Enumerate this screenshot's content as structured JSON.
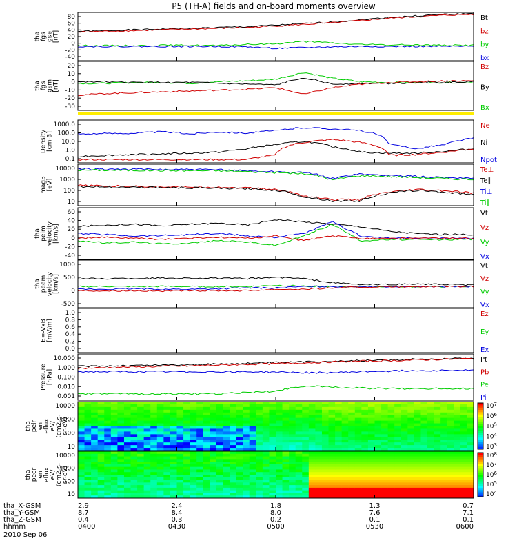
{
  "chart_data": {
    "type": "line",
    "title": "P5 (TH-A) fields and on-board moments overview",
    "x_tick_labels": [
      "0400",
      "0430",
      "0500",
      "0530",
      "0600"
    ],
    "ephemeris": [
      {
        "name": "tha_X-GSM",
        "values": [
          "2.9",
          "2.4",
          "1.8",
          "1.3",
          "0.7"
        ]
      },
      {
        "name": "tha_Y-GSM",
        "values": [
          "8.7",
          "8.4",
          "8.0",
          "7.6",
          "7.1"
        ]
      },
      {
        "name": "tha_Z-GSM",
        "values": [
          "0.4",
          "0.3",
          "0.2",
          "0.1",
          "0.1"
        ]
      },
      {
        "name": "hhmm",
        "values": [
          "0400",
          "0430",
          "0500",
          "0530",
          "0600"
        ]
      }
    ],
    "date_label": "2010 Sep 06",
    "panels": [
      {
        "id": "fgs_gse",
        "ylabel": [
          "tha",
          "fgs",
          "gse",
          "[nT]"
        ],
        "yticks": [
          "80",
          "60",
          "40",
          "20",
          "0",
          "-20",
          "-40"
        ],
        "ylim": [
          -40,
          85
        ],
        "legend": [
          {
            "label": "Bt",
            "color": "#000000"
          },
          {
            "label": "bz",
            "color": "#d00000"
          },
          {
            "label": "by",
            "color": "#00cc00"
          },
          {
            "label": "bx",
            "color": "#0000e0"
          }
        ],
        "series": [
          {
            "name": "Bt",
            "color": "#000000",
            "values": [
              36,
              38,
              40,
              42,
              44,
              46,
              48,
              52,
              56,
              60,
              66,
              72,
              76,
              80,
              82
            ]
          },
          {
            "name": "bz",
            "color": "#d00000",
            "values": [
              34,
              36,
              38,
              40,
              42,
              44,
              46,
              50,
              54,
              58,
              64,
              70,
              74,
              78,
              80
            ]
          },
          {
            "name": "by",
            "color": "#00cc00",
            "values": [
              -1,
              -1,
              -1,
              0,
              0,
              -1,
              2,
              4,
              10,
              6,
              2,
              1,
              1,
              0,
              0
            ]
          },
          {
            "name": "bx",
            "color": "#0000e0",
            "values": [
              -3,
              -3,
              -3,
              -3,
              -3,
              -3,
              -4,
              -8,
              -6,
              -4,
              -3,
              -3,
              -3,
              -3,
              -3
            ]
          }
        ]
      },
      {
        "id": "fgs_gsm",
        "ylabel": [
          "tha",
          "fgs",
          "gsm",
          "[nT]"
        ],
        "yticks": [
          "20",
          "10",
          "0",
          "-10",
          "-20",
          "-30"
        ],
        "ylim": [
          -33,
          25
        ],
        "legend": [
          {
            "label": "Bz",
            "color": "#d00000"
          },
          {
            "label": "By",
            "color": "#000000"
          },
          {
            "label": "Bx",
            "color": "#00cc00"
          }
        ],
        "series": [
          {
            "name": "Bx",
            "color": "#00cc00",
            "values": [
              -1,
              -1,
              0,
              0,
              -1,
              1,
              2,
              4,
              12,
              5,
              1,
              0,
              0,
              0,
              0
            ]
          },
          {
            "name": "By",
            "color": "#000000",
            "values": [
              1,
              1,
              0,
              0,
              0,
              -1,
              -2,
              -3,
              6,
              -2,
              -1,
              -1,
              0,
              0,
              1
            ]
          },
          {
            "name": "Bz",
            "color": "#d00000",
            "values": [
              -15,
              -13,
              -12,
              -11,
              -10,
              -9,
              -8,
              -6,
              -14,
              -6,
              -2,
              0,
              1,
              2,
              2
            ]
          }
        ]
      },
      {
        "id": "density",
        "ylabel": [
          "Density",
          "[cm-3]"
        ],
        "yticks": [
          "1000.0",
          "100.0",
          "10.0",
          "1.0",
          "0.1"
        ],
        "ylim": [
          0.1,
          1000
        ],
        "log": true,
        "legend": [
          {
            "label": "Ne",
            "color": "#d00000"
          },
          {
            "label": "Ni",
            "color": "#000000"
          },
          {
            "label": "Npot",
            "color": "#0000e0"
          }
        ],
        "series": [
          {
            "name": "Npot",
            "color": "#0000e0",
            "values": [
              50,
              55,
              60,
              80,
              50,
              80,
              60,
              100,
              200,
              150,
              100,
              5,
              2,
              5,
              20
            ]
          },
          {
            "name": "Ni",
            "color": "#000000",
            "values": [
              0.4,
              0.5,
              0.6,
              0.7,
              0.8,
              1,
              2,
              5,
              10,
              3,
              1,
              0.8,
              0.8,
              1.2,
              2
            ]
          },
          {
            "name": "Ne",
            "color": "#d00000",
            "values": [
              0.2,
              0.2,
              0.2,
              0.2,
              0.2,
              0.2,
              0.2,
              0.5,
              8,
              15,
              8,
              0.5,
              0.6,
              1,
              2
            ]
          }
        ]
      },
      {
        "id": "temperature",
        "ylabel": [
          "mag3",
          "[eV]"
        ],
        "yticks": [
          "10000",
          "1000",
          "100",
          "10"
        ],
        "ylim": [
          5,
          12000
        ],
        "log": true,
        "legend": [
          {
            "label": "Te⊥",
            "color": "#d00000"
          },
          {
            "label": "Te∥",
            "color": "#000000"
          },
          {
            "label": "Ti⊥",
            "color": "#0000e0"
          },
          {
            "label": "Ti∥",
            "color": "#00cc00"
          }
        ],
        "series": [
          {
            "name": "Ti⊥",
            "color": "#0000e0",
            "values": [
              5000,
              4800,
              4600,
              4500,
              4400,
              4200,
              3500,
              3000,
              2500,
              800,
              1800,
              1500,
              1200,
              1000,
              900
            ]
          },
          {
            "name": "Ti∥",
            "color": "#00cc00",
            "values": [
              4000,
              3900,
              3800,
              3700,
              3600,
              3500,
              3000,
              2500,
              2000,
              600,
              1400,
              1200,
              1000,
              800,
              700
            ]
          },
          {
            "name": "Te⊥",
            "color": "#d00000",
            "values": [
              220,
              200,
              190,
              180,
              170,
              160,
              140,
              100,
              30,
              15,
              15,
              60,
              100,
              80,
              50
            ]
          },
          {
            "name": "Te∥",
            "color": "#000000",
            "values": [
              180,
              170,
              160,
              150,
              140,
              130,
              120,
              90,
              25,
              12,
              12,
              50,
              90,
              60,
              40
            ]
          }
        ]
      },
      {
        "id": "peim_velocity",
        "ylabel": [
          "tha",
          "peim",
          "velocity",
          "[km/s]"
        ],
        "yticks": [
          "60",
          "40",
          "20",
          "0",
          "-20",
          "-40"
        ],
        "ylim": [
          -45,
          65
        ],
        "legend": [
          {
            "label": "Vt",
            "color": "#000000"
          },
          {
            "label": "Vz",
            "color": "#d00000"
          },
          {
            "label": "Vy",
            "color": "#00cc00"
          },
          {
            "label": "Vx",
            "color": "#0000e0"
          }
        ],
        "series": [
          {
            "name": "Vt",
            "color": "#000000",
            "values": [
              25,
              28,
              30,
              26,
              30,
              32,
              28,
              40,
              35,
              30,
              25,
              15,
              10,
              8,
              8
            ]
          },
          {
            "name": "Vy",
            "color": "#00cc00",
            "values": [
              -5,
              -10,
              -8,
              -12,
              -10,
              -5,
              -8,
              -15,
              5,
              30,
              -5,
              -3,
              -3,
              -3,
              -2
            ]
          },
          {
            "name": "Vx",
            "color": "#0000e0",
            "values": [
              10,
              8,
              5,
              6,
              8,
              10,
              5,
              2,
              10,
              35,
              5,
              0,
              0,
              0,
              0
            ]
          },
          {
            "name": "Vz",
            "color": "#d00000",
            "values": [
              0,
              2,
              0,
              -2,
              0,
              2,
              0,
              5,
              -5,
              5,
              0,
              0,
              0,
              0,
              0
            ]
          }
        ]
      },
      {
        "id": "peem_velocity",
        "ylabel": [
          "tha",
          "peem",
          "velocity",
          "[km/s]"
        ],
        "yticks": [
          "1000",
          "500",
          "0",
          "-500"
        ],
        "ylim": [
          -800,
          1000
        ],
        "legend": [
          {
            "label": "Vt",
            "color": "#000000"
          },
          {
            "label": "Vz",
            "color": "#d00000"
          },
          {
            "label": "Vy",
            "color": "#00cc00"
          },
          {
            "label": "Vx",
            "color": "#0000e0"
          }
        ],
        "series": [
          {
            "name": "Vt",
            "color": "#000000",
            "values": [
              300,
              300,
              310,
              320,
              320,
              310,
              300,
              350,
              300,
              150,
              80,
              80,
              100,
              80,
              60
            ]
          },
          {
            "name": "Vy",
            "color": "#00cc00",
            "values": [
              0,
              10,
              0,
              10,
              0,
              0,
              0,
              50,
              20,
              0,
              0,
              0,
              0,
              0,
              0
            ]
          },
          {
            "name": "Vx",
            "color": "#0000e0",
            "values": [
              -100,
              -100,
              -80,
              -100,
              -100,
              -80,
              -50,
              -50,
              0,
              0,
              0,
              0,
              0,
              0,
              0
            ]
          },
          {
            "name": "Vz",
            "color": "#d00000",
            "values": [
              -150,
              -160,
              -150,
              -170,
              -160,
              -150,
              -150,
              -100,
              -100,
              -50,
              -20,
              -10,
              -10,
              0,
              0
            ]
          }
        ]
      },
      {
        "id": "efield",
        "ylabel": [
          "E=-VxB",
          "[mV/m]"
        ],
        "yticks": [
          "1.0",
          "0.8",
          "0.6",
          "0.4",
          "0.2",
          "0.0"
        ],
        "ylim": [
          0,
          1
        ],
        "legend": [
          {
            "label": "Ez",
            "color": "#d00000"
          },
          {
            "label": "Ey",
            "color": "#00cc00"
          },
          {
            "label": "Ex",
            "color": "#0000e0"
          }
        ],
        "series": []
      },
      {
        "id": "pressure",
        "ylabel": [
          "Pressure",
          "[nPa]"
        ],
        "yticks": [
          "10.000",
          "1.000",
          "0.100",
          "0.010",
          "0.001"
        ],
        "ylim": [
          0.0008,
          12
        ],
        "log": true,
        "legend": [
          {
            "label": "Pt",
            "color": "#000000"
          },
          {
            "label": "Pb",
            "color": "#d00000"
          },
          {
            "label": "Pe",
            "color": "#00cc00"
          },
          {
            "label": "Pi",
            "color": "#0000e0"
          }
        ],
        "series": [
          {
            "name": "Pt",
            "color": "#000000",
            "values": [
              0.9,
              1,
              1.1,
              1.2,
              1.3,
              1.5,
              1.7,
              2,
              2.3,
              2.7,
              3.1,
              3.5,
              4,
              4.5,
              5
            ]
          },
          {
            "name": "Pb",
            "color": "#d00000",
            "values": [
              0.6,
              0.7,
              0.8,
              0.9,
              1,
              1.2,
              1.4,
              1.6,
              1.9,
              2.3,
              2.7,
              3,
              3.5,
              4,
              4.5
            ]
          },
          {
            "name": "Pi",
            "color": "#0000e0",
            "values": [
              0.3,
              0.3,
              0.3,
              0.3,
              0.3,
              0.3,
              0.3,
              0.28,
              0.25,
              0.25,
              0.3,
              0.35,
              0.38,
              0.4,
              0.4
            ]
          },
          {
            "name": "Pe",
            "color": "#00cc00",
            "values": [
              0.003,
              0.003,
              0.003,
              0.003,
              0.003,
              0.003,
              0.004,
              0.005,
              0.015,
              0.012,
              0.01,
              0.009,
              0.009,
              0.009,
              0.009
            ]
          }
        ]
      },
      {
        "id": "peir_spectrogram",
        "type": "heatmap",
        "ylabel": [
          "tha",
          "peir",
          "en",
          "eflux",
          "eV/",
          "(cm2-s-",
          "sr-eV)"
        ],
        "yticks": [
          "10000",
          "1000",
          "100",
          "10"
        ],
        "colorbar_ticks": [
          "10^7",
          "10^6",
          "10^5",
          "10^4",
          "10^3"
        ]
      },
      {
        "id": "peer_spectrogram",
        "type": "heatmap",
        "ylabel": [
          "tha",
          "peer",
          "en",
          "eflux",
          "eV/",
          "(cm2-s-",
          "sr-eV)"
        ],
        "yticks": [
          "10000",
          "1000",
          "100",
          "10"
        ],
        "colorbar_ticks": [
          "10^8",
          "10^7",
          "10^6",
          "10^5",
          "10^4"
        ]
      }
    ]
  }
}
